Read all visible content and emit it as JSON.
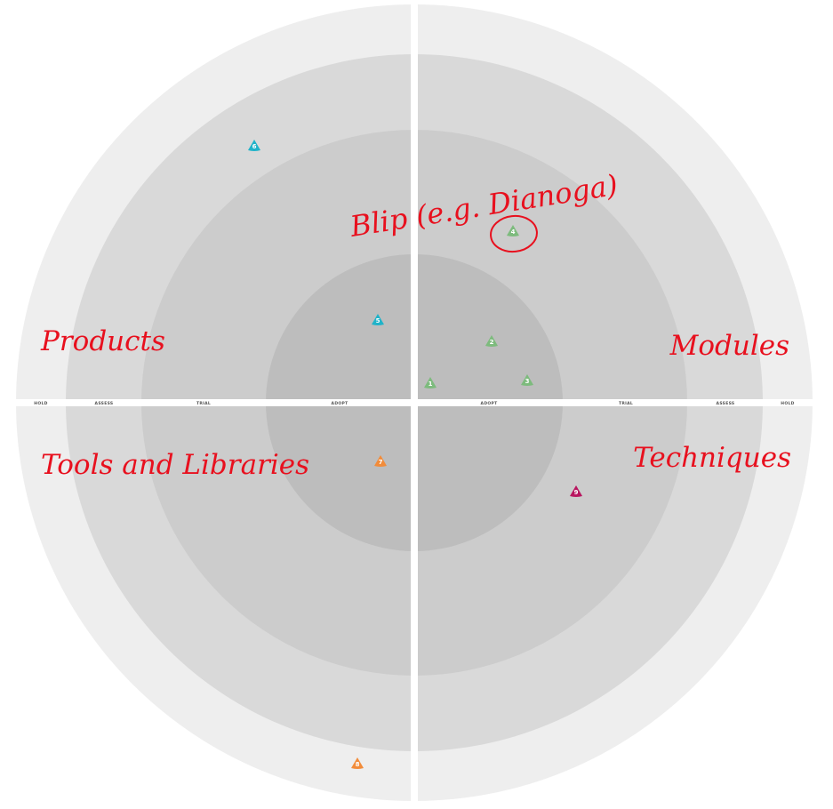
{
  "ring_labels": {
    "left": [
      "HOLD",
      "ASSESS",
      "TRIAL",
      "ADOPT"
    ],
    "right": [
      "ADOPT",
      "TRIAL",
      "ASSESS",
      "HOLD"
    ]
  },
  "quadrants": {
    "top_left": "Products",
    "top_right": "Modules",
    "bottom_left": "Tools and Libraries",
    "bottom_right": "Techniques"
  },
  "annotation": {
    "text": "Blip (e.g. Dianoga)",
    "color": "#e8101e"
  },
  "blips": [
    {
      "num": "1",
      "color": "#7dbb7d"
    },
    {
      "num": "2",
      "color": "#7dbb7d"
    },
    {
      "num": "3",
      "color": "#7dbb7d"
    },
    {
      "num": "4",
      "color": "#7dbb7d"
    },
    {
      "num": "5",
      "color": "#1fb3c9"
    },
    {
      "num": "6",
      "color": "#1fb3c9"
    },
    {
      "num": "7",
      "color": "#f28c3a"
    },
    {
      "num": "8",
      "color": "#f28c3a"
    },
    {
      "num": "9",
      "color": "#b8155f"
    }
  ],
  "colors": {
    "ring_hold": "#eeeeee",
    "ring_assess": "#d9d9d9",
    "ring_trial": "#cccccc",
    "ring_adopt": "#bdbdbd"
  }
}
